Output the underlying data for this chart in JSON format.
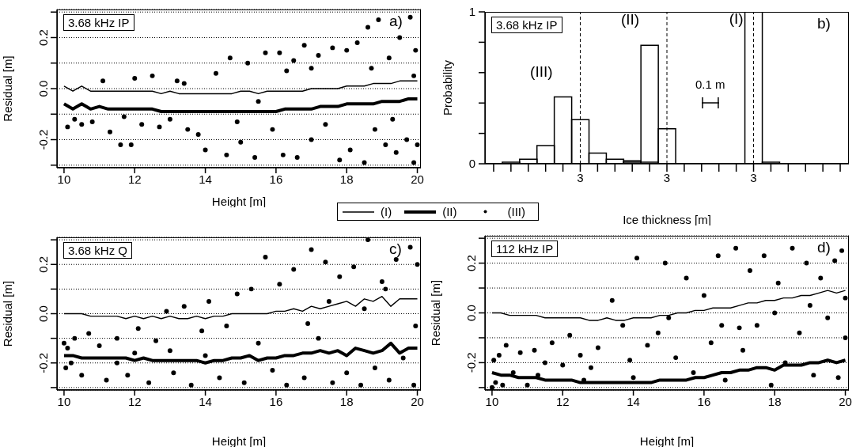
{
  "chart_data": [
    {
      "type": "line",
      "title": "3.68 kHz IP",
      "xlabel": "Height [m]",
      "ylabel": "Residual [m]",
      "annotations": [
        "a)"
      ],
      "legend": "bottom right",
      "grid": "y",
      "line_style": "solid",
      "xlim": [
        9.8,
        20.1
      ],
      "xticks": [
        10,
        12,
        14,
        16,
        18,
        20
      ],
      "ylim": [
        -0.31,
        0.31
      ],
      "yticks": [
        {
          "value": -0.3,
          "label": null
        },
        -0.2,
        {
          "value": -0.1,
          "label": null
        },
        {
          "value": 0,
          "label": "0.0"
        },
        {
          "value": 0.1,
          "label": null
        },
        0.2,
        {
          "value": 0.3,
          "label": null
        }
      ],
      "x": [
        10,
        10.25,
        10.5,
        10.75,
        11,
        11.25,
        11.5,
        11.75,
        12,
        12.25,
        12.5,
        12.75,
        13,
        13.25,
        13.5,
        13.75,
        14,
        14.25,
        14.5,
        14.75,
        15,
        15.25,
        15.5,
        15.75,
        16,
        16.25,
        16.5,
        16.75,
        17,
        17.25,
        17.5,
        17.75,
        18,
        18.25,
        18.5,
        18.75,
        19,
        19.25,
        19.5,
        19.75,
        20
      ],
      "series": [
        {
          "name": "(I)",
          "type": "line",
          "color": "#000000",
          "values": [
            0.01,
            -0.01,
            0.01,
            -0.01,
            -0.01,
            -0.01,
            -0.01,
            -0.01,
            -0.01,
            -0.01,
            -0.01,
            -0.02,
            -0.01,
            -0.02,
            -0.02,
            -0.02,
            -0.02,
            -0.02,
            -0.02,
            -0.02,
            -0.01,
            -0.01,
            -0.02,
            -0.01,
            -0.01,
            -0.01,
            -0.01,
            -0.01,
            0,
            0,
            0,
            0,
            0.01,
            0.01,
            0.01,
            0.02,
            0.02,
            0.02,
            0.03,
            0.03,
            0.03
          ]
        },
        {
          "name": "(II)",
          "type": "line",
          "color": "#000000",
          "values": [
            -0.06,
            -0.08,
            -0.06,
            -0.08,
            -0.07,
            -0.08,
            -0.08,
            -0.08,
            -0.08,
            -0.08,
            -0.08,
            -0.09,
            -0.09,
            -0.09,
            -0.09,
            -0.09,
            -0.09,
            -0.09,
            -0.09,
            -0.09,
            -0.09,
            -0.09,
            -0.09,
            -0.09,
            -0.09,
            -0.08,
            -0.08,
            -0.08,
            -0.08,
            -0.07,
            -0.07,
            -0.07,
            -0.06,
            -0.06,
            -0.06,
            -0.06,
            -0.05,
            -0.05,
            -0.05,
            -0.04,
            -0.04
          ]
        },
        {
          "name": "(III)",
          "type": "scatter",
          "color": "#000000",
          "x": [
            10.1,
            10.3,
            10.5,
            10.8,
            11.1,
            11.3,
            11.6,
            11.9,
            12,
            12.2,
            12.5,
            12.7,
            13,
            13.2,
            13.5,
            13.8,
            14,
            14.3,
            14.6,
            14.7,
            15,
            15.2,
            15.4,
            15.7,
            15.9,
            16.1,
            16.2,
            16.5,
            16.6,
            16.8,
            17,
            17.2,
            17.4,
            17.6,
            17.8,
            18,
            18.1,
            18.3,
            18.5,
            18.6,
            18.8,
            18.9,
            19.1,
            19.2,
            19.4,
            19.5,
            19.7,
            19.8,
            19.9,
            19.95,
            20,
            19.9,
            15.5,
            13.4,
            17,
            18.7,
            11.7,
            16.3,
            19.3,
            14.9
          ],
          "values": [
            -0.15,
            -0.12,
            -0.14,
            -0.13,
            0.03,
            -0.17,
            -0.22,
            -0.22,
            0.04,
            -0.14,
            0.05,
            -0.15,
            -0.12,
            0.03,
            -0.16,
            -0.18,
            -0.24,
            0.06,
            -0.26,
            0.12,
            -0.21,
            0.1,
            -0.27,
            0.14,
            -0.16,
            0.14,
            -0.26,
            0.11,
            -0.27,
            0.17,
            -0.2,
            0.13,
            -0.14,
            0.16,
            -0.28,
            0.15,
            -0.24,
            0.18,
            -0.29,
            0.24,
            -0.16,
            0.27,
            -0.22,
            0.12,
            -0.25,
            0.2,
            -0.2,
            0.28,
            -0.29,
            0.15,
            -0.22,
            0.05,
            -0.05,
            0.02,
            0.08,
            0.08,
            -0.11,
            0.07,
            -0.12,
            -0.13
          ]
        }
      ]
    },
    {
      "type": "bar",
      "title": "3.68 kHz IP",
      "grid": "x",
      "xlabel": "Ice thickness [m]",
      "ylabel": "Probability",
      "annotations": [
        "b)",
        "0.1 m"
      ],
      "categories": [
        null,
        null,
        null,
        null,
        null,
        "3",
        null,
        null,
        null,
        null,
        "3",
        null,
        null,
        null,
        null,
        "3",
        null,
        null,
        null,
        null,
        null
      ],
      "ylim": [
        0,
        1
      ],
      "yticks": [
        0,
        {
          "value": 0.2,
          "label": null
        },
        {
          "value": 0.4,
          "label": null
        },
        {
          "value": 0.6,
          "label": null
        },
        {
          "value": 0.8,
          "label": null
        },
        1
      ],
      "series": [
        {
          "name": "(III)",
          "color": "#000000",
          "values": [
            null,
            0.01,
            0.03,
            0.12,
            0.44,
            0.29,
            0.07,
            0.03,
            0.02,
            0.01,
            null,
            null,
            null,
            null,
            null,
            null,
            null,
            null,
            null,
            null,
            null
          ]
        },
        {
          "name": "(II)",
          "color": "#000000",
          "values": [
            null,
            null,
            null,
            null,
            null,
            null,
            null,
            null,
            0.01,
            0.78,
            0.23,
            null,
            null,
            null,
            null,
            null,
            null,
            null,
            null,
            null,
            null
          ]
        },
        {
          "name": "(I)",
          "color": "#000000",
          "values": [
            null,
            null,
            null,
            null,
            null,
            null,
            null,
            null,
            null,
            null,
            null,
            null,
            null,
            null,
            null,
            1,
            0.01,
            null,
            null,
            null,
            null
          ]
        }
      ]
    },
    {
      "type": "line",
      "title": "3.68 kHz Q",
      "xlabel": "Height [m]",
      "ylabel": "Residual [m]",
      "annotations": [
        "c)"
      ],
      "grid": "y",
      "line_style": "solid",
      "xlim": [
        9.8,
        20.1
      ],
      "xticks": [
        10,
        12,
        14,
        16,
        18,
        20
      ],
      "ylim": [
        -0.31,
        0.31
      ],
      "yticks": [
        {
          "value": -0.3,
          "label": null
        },
        -0.2,
        {
          "value": -0.1,
          "label": null
        },
        {
          "value": 0,
          "label": "0.0"
        },
        {
          "value": 0.1,
          "label": null
        },
        0.2,
        {
          "value": 0.3,
          "label": null
        }
      ],
      "x": [
        10,
        10.25,
        10.5,
        10.75,
        11,
        11.25,
        11.5,
        11.75,
        12,
        12.25,
        12.5,
        12.75,
        13,
        13.25,
        13.5,
        13.75,
        14,
        14.25,
        14.5,
        14.75,
        15,
        15.25,
        15.5,
        15.75,
        16,
        16.25,
        16.5,
        16.75,
        17,
        17.25,
        17.5,
        17.75,
        18,
        18.25,
        18.5,
        18.75,
        19,
        19.25,
        19.5,
        19.75,
        20
      ],
      "series": [
        {
          "type": "line",
          "color": "#000000",
          "values": [
            0,
            0,
            0,
            -0.01,
            -0.01,
            -0.01,
            -0.01,
            -0.02,
            -0.01,
            -0.02,
            -0.01,
            -0.02,
            -0.01,
            -0.02,
            -0.02,
            -0.01,
            -0.02,
            -0.01,
            -0.01,
            0,
            0,
            0,
            0,
            0,
            0.01,
            0.01,
            0.02,
            0.01,
            0.03,
            0.02,
            0.03,
            0.04,
            0.05,
            0.03,
            0.06,
            0.05,
            0.07,
            0.03,
            0.06,
            0.06,
            0.06
          ]
        },
        {
          "type": "line",
          "color": "#000000",
          "values": [
            -0.17,
            -0.17,
            -0.18,
            -0.18,
            -0.18,
            -0.18,
            -0.18,
            -0.18,
            -0.19,
            -0.18,
            -0.19,
            -0.19,
            -0.19,
            -0.19,
            -0.19,
            -0.19,
            -0.2,
            -0.19,
            -0.19,
            -0.18,
            -0.18,
            -0.17,
            -0.19,
            -0.18,
            -0.18,
            -0.17,
            -0.17,
            -0.16,
            -0.16,
            -0.15,
            -0.16,
            -0.15,
            -0.17,
            -0.14,
            -0.15,
            -0.16,
            -0.15,
            -0.12,
            -0.16,
            -0.14,
            -0.14
          ]
        },
        {
          "type": "scatter",
          "color": "#000000",
          "x": [
            10,
            10.05,
            10.1,
            10.2,
            10.3,
            10.5,
            10.7,
            11,
            11.2,
            11.5,
            11.8,
            12.1,
            12.4,
            12.6,
            12.9,
            13.1,
            13.4,
            13.6,
            13.9,
            14.1,
            14.4,
            14.6,
            14.9,
            15.1,
            15.3,
            15.7,
            15.9,
            16.1,
            16.3,
            16.5,
            16.8,
            17,
            17.2,
            17.4,
            17.6,
            17.8,
            18,
            18.2,
            18.4,
            18.6,
            18.8,
            19,
            19.2,
            19.4,
            19.6,
            19.8,
            19.9,
            20,
            19.95,
            15.5,
            13,
            11.5,
            16.9,
            18.5,
            19.1,
            14,
            12,
            17.5
          ],
          "values": [
            -0.12,
            -0.22,
            -0.14,
            -0.2,
            -0.1,
            -0.25,
            -0.08,
            -0.13,
            -0.27,
            -0.1,
            -0.25,
            -0.06,
            -0.28,
            -0.11,
            0.01,
            -0.24,
            0.03,
            -0.29,
            -0.07,
            0.05,
            -0.26,
            -0.05,
            0.08,
            -0.28,
            0.1,
            0.23,
            -0.23,
            0.12,
            -0.29,
            0.18,
            -0.26,
            0.26,
            -0.1,
            0.21,
            -0.28,
            0.15,
            -0.24,
            0.19,
            -0.29,
            0.3,
            -0.22,
            0.13,
            -0.27,
            0.22,
            -0.18,
            0.27,
            -0.29,
            0.2,
            -0.05,
            -0.12,
            -0.15,
            -0.2,
            -0.04,
            0.02,
            0.1,
            -0.17,
            -0.16,
            0.05
          ]
        }
      ]
    },
    {
      "type": "line",
      "title": "112 kHz IP",
      "xlabel": "Height [m]",
      "ylabel": "Residual [m]",
      "annotations": [
        "d)"
      ],
      "grid": "y",
      "line_style": "solid",
      "xlim": [
        9.8,
        20.1
      ],
      "xticks": [
        10,
        12,
        14,
        16,
        18,
        20
      ],
      "ylim": [
        -0.31,
        0.31
      ],
      "yticks": [
        {
          "value": -0.3,
          "label": null
        },
        -0.2,
        {
          "value": -0.1,
          "label": null
        },
        {
          "value": 0,
          "label": "0.0"
        },
        {
          "value": 0.1,
          "label": null
        },
        0.2,
        {
          "value": 0.3,
          "label": null
        }
      ],
      "x": [
        10,
        10.25,
        10.5,
        10.75,
        11,
        11.25,
        11.5,
        11.75,
        12,
        12.25,
        12.5,
        12.75,
        13,
        13.25,
        13.5,
        13.75,
        14,
        14.25,
        14.5,
        14.75,
        15,
        15.25,
        15.5,
        15.75,
        16,
        16.25,
        16.5,
        16.75,
        17,
        17.25,
        17.5,
        17.75,
        18,
        18.25,
        18.5,
        18.75,
        19,
        19.25,
        19.5,
        19.75,
        20
      ],
      "series": [
        {
          "type": "line",
          "color": "#000000",
          "values": [
            0,
            0,
            -0.01,
            -0.01,
            -0.01,
            -0.01,
            -0.02,
            -0.02,
            -0.02,
            -0.02,
            -0.02,
            -0.03,
            -0.03,
            -0.02,
            -0.03,
            -0.03,
            -0.02,
            -0.02,
            -0.02,
            -0.01,
            -0.01,
            0,
            0,
            0.01,
            0.01,
            0.02,
            0.02,
            0.02,
            0.03,
            0.04,
            0.04,
            0.05,
            0.05,
            0.06,
            0.06,
            0.07,
            0.07,
            0.08,
            0.09,
            0.08,
            0.09
          ]
        },
        {
          "type": "line",
          "color": "#000000",
          "values": [
            -0.24,
            -0.25,
            -0.25,
            -0.26,
            -0.26,
            -0.26,
            -0.27,
            -0.27,
            -0.27,
            -0.27,
            -0.28,
            -0.28,
            -0.28,
            -0.28,
            -0.28,
            -0.28,
            -0.28,
            -0.28,
            -0.28,
            -0.27,
            -0.27,
            -0.27,
            -0.27,
            -0.26,
            -0.26,
            -0.25,
            -0.24,
            -0.24,
            -0.23,
            -0.23,
            -0.22,
            -0.22,
            -0.23,
            -0.21,
            -0.21,
            -0.21,
            -0.2,
            -0.2,
            -0.19,
            -0.2,
            -0.19
          ]
        },
        {
          "type": "scatter",
          "color": "#000000",
          "x": [
            10,
            10.05,
            10.1,
            10.2,
            10.3,
            10.4,
            10.6,
            10.8,
            11,
            11.2,
            11.5,
            11.7,
            12,
            12.2,
            12.5,
            12.8,
            13,
            13.4,
            13.7,
            13.9,
            14.1,
            14.4,
            14.7,
            14.9,
            15.2,
            15.5,
            15.7,
            16,
            16.2,
            16.4,
            16.6,
            16.9,
            17.1,
            17.3,
            17.5,
            17.7,
            17.9,
            18.1,
            18.3,
            18.5,
            18.7,
            18.9,
            19.1,
            19.3,
            19.5,
            19.7,
            19.8,
            19.9,
            20,
            20,
            15,
            16.5,
            18,
            12.6,
            11.3,
            14,
            17,
            19
          ],
          "values": [
            -0.3,
            -0.19,
            -0.28,
            -0.17,
            -0.29,
            -0.13,
            -0.24,
            -0.16,
            -0.29,
            -0.15,
            -0.2,
            -0.12,
            -0.21,
            -0.09,
            -0.17,
            -0.22,
            -0.14,
            0.05,
            -0.05,
            -0.19,
            0.22,
            -0.13,
            -0.08,
            0.2,
            -0.18,
            0.14,
            -0.24,
            0.07,
            -0.12,
            0.23,
            -0.27,
            0.26,
            -0.15,
            0.17,
            -0.05,
            0.23,
            -0.29,
            0.12,
            -0.2,
            0.26,
            -0.08,
            0.2,
            -0.25,
            0.14,
            -0.02,
            0.21,
            -0.26,
            0.25,
            -0.1,
            0.06,
            -0.02,
            -0.05,
            0,
            -0.27,
            -0.25,
            -0.26,
            -0.06,
            0.03
          ]
        }
      ]
    }
  ]
}
